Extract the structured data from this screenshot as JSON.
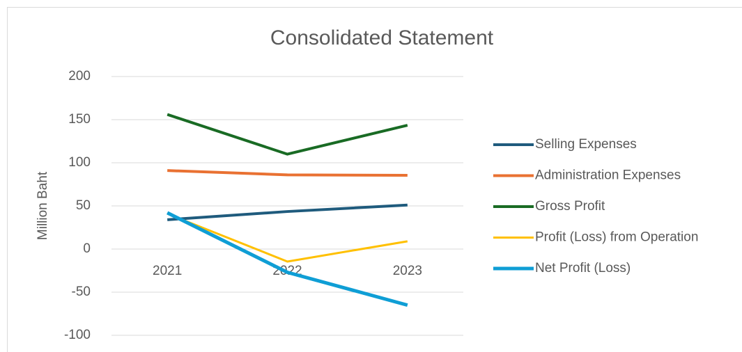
{
  "chart_data": {
    "type": "line",
    "title": "Consolidated Statement",
    "y_label": "Million Baht",
    "categories": [
      "2021",
      "2022",
      "2023"
    ],
    "series": [
      {
        "name": "Selling Expenses",
        "color": "#1f5b7d",
        "values": [
          34,
          43.5,
          51
        ]
      },
      {
        "name": "Administration Expenses",
        "color": "#e97132",
        "values": [
          91,
          86,
          85.5
        ]
      },
      {
        "name": "Gross Profit",
        "color": "#196b24",
        "values": [
          156,
          110,
          143.5
        ]
      },
      {
        "name": "Profit (Loss) from Operation",
        "color": "#ffc000",
        "values": [
          41,
          -14.5,
          9
        ]
      },
      {
        "name": "Net Profit (Loss)",
        "color": "#0f9ed5",
        "values": [
          42,
          -27,
          -65
        ]
      }
    ],
    "ylim": [
      -100,
      200
    ],
    "yticks": [
      -100,
      -50,
      0,
      50,
      100,
      150,
      200
    ],
    "grid": true,
    "legend": "right"
  }
}
